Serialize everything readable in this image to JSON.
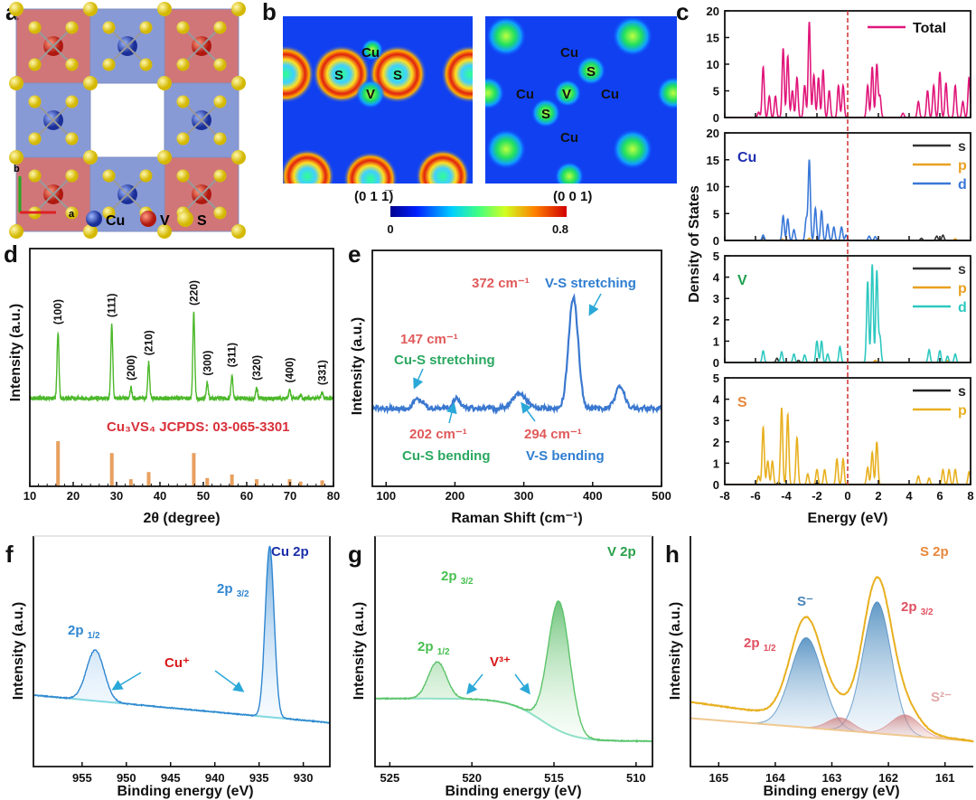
{
  "panel_labels": {
    "a": "a",
    "b": "b",
    "c": "c",
    "d": "d",
    "e": "e",
    "f": "f",
    "g": "g",
    "h": "h"
  },
  "panel_a": {
    "legend": [
      {
        "label": "Cu",
        "color": "#1f3fa8"
      },
      {
        "label": "V",
        "color": "#c4221a"
      },
      {
        "label": "S",
        "color": "#e6cf1e"
      }
    ],
    "axis_b": "b",
    "axis_a": "a"
  },
  "panel_b": {
    "maps": [
      {
        "plane": "(0 1 1̅)",
        "atoms": [
          "Cu",
          "S",
          "S",
          "V"
        ]
      },
      {
        "plane": "(0 0 1)",
        "atoms": [
          "Cu",
          "S",
          "Cu",
          "V",
          "Cu",
          "S",
          "Cu"
        ]
      }
    ],
    "colorbar": {
      "min": "0",
      "max": "0.8"
    }
  },
  "chart_data": [
    {
      "type": "line",
      "panel": "c",
      "xlabel": "Energy (eV)",
      "ylabel": "Density of States",
      "xlim": [
        -8,
        8
      ],
      "xticks": [
        -8,
        -6,
        -4,
        -2,
        0,
        2,
        4,
        6,
        8
      ],
      "fermi_level": 0,
      "peak_width": 0.07,
      "subplots": [
        {
          "element": "",
          "element_color": "#e0177a",
          "ylim": [
            0,
            20
          ],
          "yticks": [
            0,
            5,
            10,
            15,
            20
          ],
          "series": [
            {
              "name": "Total",
              "color": "#e0177a",
              "peaks": [
                [
                  -5.8,
                  1
                ],
                [
                  -5.5,
                  9.5
                ],
                [
                  -5.1,
                  4
                ],
                [
                  -4.7,
                  4
                ],
                [
                  -4.2,
                  13
                ],
                [
                  -3.9,
                  11.5
                ],
                [
                  -3.6,
                  5
                ],
                [
                  -3.3,
                  7.5
                ],
                [
                  -2.8,
                  6
                ],
                [
                  -2.5,
                  18
                ],
                [
                  -2.2,
                  8
                ],
                [
                  -1.9,
                  7.5
                ],
                [
                  -1.6,
                  9
                ],
                [
                  -1.2,
                  5
                ],
                [
                  -0.6,
                  6
                ],
                [
                  -0.3,
                  6
                ],
                [
                  1.3,
                  6
                ],
                [
                  1.6,
                  9.5
                ],
                [
                  1.9,
                  10
                ],
                [
                  2.1,
                  4
                ],
                [
                  3.6,
                  0.8
                ],
                [
                  4.6,
                  3
                ],
                [
                  5.2,
                  5
                ],
                [
                  5.6,
                  6
                ],
                [
                  6,
                  8.5
                ],
                [
                  6.4,
                  6.5
                ],
                [
                  7,
                  6
                ],
                [
                  7.5,
                  3
                ],
                [
                  7.9,
                  7.5
                ]
              ]
            }
          ]
        },
        {
          "element": "Cu",
          "element_color": "#1f2fb0",
          "ylim": [
            0,
            20
          ],
          "yticks": [
            0,
            5,
            10,
            15,
            20
          ],
          "series": [
            {
              "name": "s",
              "color": "#333333",
              "peaks": [
                [
                  -5.5,
                  0.5
                ],
                [
                  4.8,
                  0.4
                ],
                [
                  5.8,
                  0.8
                ],
                [
                  6.2,
                  1
                ]
              ]
            },
            {
              "name": "p",
              "color": "#e8a020",
              "peaks": [
                [
                  -4.3,
                  0.3
                ],
                [
                  -2.5,
                  0.4
                ],
                [
                  7,
                  0.3
                ]
              ]
            },
            {
              "name": "d",
              "color": "#3a78d8",
              "peaks": [
                [
                  -5.5,
                  1
                ],
                [
                  -4.2,
                  4.6
                ],
                [
                  -3.9,
                  4
                ],
                [
                  -3.5,
                  2
                ],
                [
                  -2.7,
                  4
                ],
                [
                  -2.5,
                  15
                ],
                [
                  -2.1,
                  6
                ],
                [
                  -1.7,
                  5.5
                ],
                [
                  -1.3,
                  3
                ],
                [
                  -0.9,
                  2.5
                ],
                [
                  -0.4,
                  2.5
                ],
                [
                  -0.1,
                  1
                ],
                [
                  1.4,
                  0.8
                ],
                [
                  1.8,
                  0.7
                ]
              ]
            }
          ]
        },
        {
          "element": "V",
          "element_color": "#1fa050",
          "ylim": [
            0,
            5
          ],
          "yticks": [
            0,
            1,
            2,
            3,
            4,
            5
          ],
          "series": [
            {
              "name": "s",
              "color": "#333333",
              "peaks": [
                [
                  -4.6,
                  0.2
                ],
                [
                  -3.2,
                  0.1
                ]
              ]
            },
            {
              "name": "p",
              "color": "#e8a020",
              "peaks": [
                [
                  1.8,
                  0.1
                ],
                [
                  6.5,
                  0.1
                ]
              ]
            },
            {
              "name": "d",
              "color": "#2ec8c0",
              "peaks": [
                [
                  -5.5,
                  0.55
                ],
                [
                  -4.3,
                  0.5
                ],
                [
                  -3.5,
                  0.4
                ],
                [
                  -2.8,
                  0.35
                ],
                [
                  -2,
                  1
                ],
                [
                  -1.7,
                  1
                ],
                [
                  -1.3,
                  0.4
                ],
                [
                  -0.5,
                  0.75
                ],
                [
                  1.3,
                  3.8
                ],
                [
                  1.6,
                  4.6
                ],
                [
                  1.9,
                  4.3
                ],
                [
                  2.1,
                  1.2
                ],
                [
                  5.3,
                  0.6
                ],
                [
                  6,
                  0.55
                ],
                [
                  6.5,
                  0.3
                ],
                [
                  7,
                  0.4
                ]
              ]
            }
          ]
        },
        {
          "element": "S",
          "element_color": "#e8873a",
          "ylim": [
            0,
            5
          ],
          "yticks": [
            0,
            1,
            2,
            3,
            4,
            5
          ],
          "series": [
            {
              "name": "s",
              "color": "#222222",
              "peaks": [
                [
                  -4.5,
                  0.1
                ],
                [
                  -2,
                  0.08
                ]
              ]
            },
            {
              "name": "p",
              "color": "#e8b020",
              "peaks": [
                [
                  -5.8,
                  0.4
                ],
                [
                  -5.5,
                  2.7
                ],
                [
                  -5.2,
                  1.1
                ],
                [
                  -4.9,
                  1.1
                ],
                [
                  -4.3,
                  3.6
                ],
                [
                  -3.9,
                  3.3
                ],
                [
                  -3.3,
                  2.2
                ],
                [
                  -2.6,
                  0.5
                ],
                [
                  -2,
                  0.7
                ],
                [
                  -1.5,
                  0.7
                ],
                [
                  -0.7,
                  1.2
                ],
                [
                  -0.3,
                  1.2
                ],
                [
                  1.3,
                  0.8
                ],
                [
                  1.6,
                  1.5
                ],
                [
                  1.9,
                  2
                ],
                [
                  4.6,
                  0.4
                ],
                [
                  5.3,
                  0.3
                ],
                [
                  6.2,
                  0.7
                ],
                [
                  6.6,
                  0.7
                ],
                [
                  7,
                  0.7
                ],
                [
                  7.9,
                  0.6
                ]
              ]
            }
          ]
        }
      ]
    },
    {
      "type": "line",
      "panel": "d",
      "xlabel": "2θ (degree)",
      "ylabel": "Intensity (a.u.)",
      "xlim": [
        10,
        80
      ],
      "xticks": [
        10,
        20,
        30,
        40,
        50,
        60,
        70,
        80
      ],
      "ylim": [
        0,
        10
      ],
      "measured": {
        "color": "#4cb82a",
        "baseline": 3.7,
        "peaks": [
          {
            "x": 16.5,
            "h": 2.8,
            "hkl": "(100)"
          },
          {
            "x": 28.9,
            "h": 3.1,
            "hkl": "(111)"
          },
          {
            "x": 33.3,
            "h": 0.45,
            "hkl": "(200)"
          },
          {
            "x": 37.4,
            "h": 1.5,
            "hkl": "(210)"
          },
          {
            "x": 47.8,
            "h": 3.6,
            "hkl": "(220)"
          },
          {
            "x": 50.9,
            "h": 0.65,
            "hkl": "(300)"
          },
          {
            "x": 56.6,
            "h": 1.0,
            "hkl": "(311)"
          },
          {
            "x": 62.3,
            "h": 0.45,
            "hkl": "(320)"
          },
          {
            "x": 69.9,
            "h": 0.35,
            "hkl": "(400)"
          },
          {
            "x": 72.4,
            "h": 0.15,
            "hkl": ""
          },
          {
            "x": 77.4,
            "h": 0.25,
            "hkl": "(331)"
          }
        ]
      },
      "reference": {
        "label": "Cu₃VS₄  JCPDS:  03-065-3301",
        "color": "#e8a060",
        "bars": [
          [
            16.5,
            1.9
          ],
          [
            28.9,
            1.4
          ],
          [
            33.3,
            0.3
          ],
          [
            37.4,
            0.6
          ],
          [
            47.8,
            1.4
          ],
          [
            50.9,
            0.35
          ],
          [
            56.6,
            0.5
          ],
          [
            62.3,
            0.3
          ],
          [
            69.9,
            0.3
          ],
          [
            72.4,
            0.2
          ],
          [
            77.4,
            0.25
          ]
        ]
      }
    },
    {
      "type": "line",
      "panel": "e",
      "xlabel": "Raman Shift (cm⁻¹)",
      "ylabel": "Intensity (a.u.)",
      "xlim": [
        80,
        500
      ],
      "xticks": [
        100,
        200,
        300,
        400,
        500
      ],
      "ylim": [
        0,
        10
      ],
      "color": "#3a78d0",
      "baseline": 3.3,
      "peaks": [
        [
          147,
          0.4,
          7
        ],
        [
          202,
          0.4,
          6
        ],
        [
          294,
          0.6,
          10
        ],
        [
          372,
          4.7,
          7
        ],
        [
          440,
          0.9,
          7
        ]
      ],
      "annotations": {
        "p372": "372 cm⁻¹",
        "vs_str": "V-S stretching",
        "p147": "147 cm⁻¹",
        "cus_str": "Cu-S stretching",
        "p202": "202 cm⁻¹",
        "cus_bend": "Cu-S bending",
        "p294": "294 cm⁻¹",
        "vs_bend": "V-S bending"
      }
    },
    {
      "type": "line",
      "panel": "f",
      "title": "Cu 2p",
      "xlabel": "Binding energy (eV)",
      "ylabel": "Intensity (a.u.)",
      "xlim": [
        960.5,
        927
      ],
      "xticks": [
        955,
        950,
        945,
        940,
        935,
        930
      ],
      "ylim": [
        0,
        10
      ],
      "color": "#2f86d0",
      "background": {
        "type": "linear",
        "left": 3.1,
        "right": 1.9,
        "color": "#7fd8e0"
      },
      "peaks": [
        {
          "label": {
            "main": "2p",
            "sub": "3/2"
          },
          "center": 933.8,
          "height": 7.4,
          "width": 0.5
        },
        {
          "label": {
            "main": "2p",
            "sub": "1/2"
          },
          "center": 953.5,
          "height": 2.2,
          "width": 1.0
        }
      ],
      "state": "Cu⁺"
    },
    {
      "type": "line",
      "panel": "g",
      "title": "V 2p",
      "xlabel": "Binding energy (eV)",
      "ylabel": "Intensity (a.u.)",
      "xlim": [
        525.9,
        509
      ],
      "xticks": [
        525,
        520,
        515,
        510
      ],
      "ylim": [
        0,
        10
      ],
      "color": "#5cc46a",
      "background": {
        "type": "step",
        "left": 2.95,
        "right": 1.1,
        "center": 515.8,
        "width": 1.0,
        "color": "#8fe0c8"
      },
      "peaks": [
        {
          "label": {
            "main": "2p",
            "sub": "3/2"
          },
          "center": 514.7,
          "height": 5.6,
          "width": 0.65
        },
        {
          "label": {
            "main": "2p",
            "sub": "1/2"
          },
          "center": 522.1,
          "height": 1.6,
          "width": 0.55
        }
      ],
      "state": "V³⁺"
    },
    {
      "type": "line",
      "panel": "h",
      "title": "S 2p",
      "xlabel": "Binding energy  (eV)",
      "ylabel": "Intensity (a.u.)",
      "xlim": [
        165.5,
        160.5
      ],
      "xticks": [
        165,
        164,
        163,
        162,
        161
      ],
      "ylim": [
        0,
        10
      ],
      "background": {
        "type": "linear",
        "left": 2.1,
        "right": 1.1,
        "color": "#f0c890"
      },
      "envelope_color": "#e8b020",
      "components": [
        {
          "species": "S⁻",
          "color": "#3a7fb8",
          "peaks": [
            [
              163.45,
              3.9,
              0.28
            ],
            [
              162.2,
              5.7,
              0.25
            ]
          ]
        },
        {
          "species": "S²⁻",
          "color": "#d88a8a",
          "peaks": [
            [
              162.85,
              0.55,
              0.22
            ],
            [
              161.7,
              0.9,
              0.25
            ]
          ]
        }
      ],
      "labels": {
        "p32": {
          "main": "2p",
          "sub": "3/2"
        },
        "p12": {
          "main": "2p",
          "sub": "1/2"
        }
      }
    }
  ]
}
